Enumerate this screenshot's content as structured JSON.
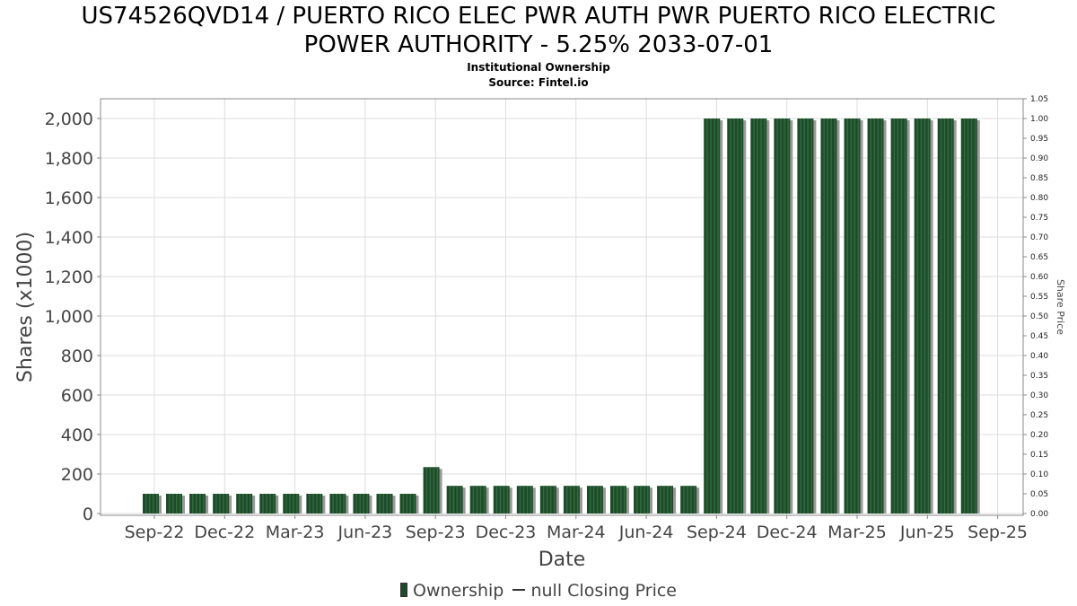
{
  "header": {
    "title_line1": "US74526QVD14 / PUERTO RICO ELEC PWR AUTH PWR PUERTO RICO ELECTRIC",
    "title_line2": "POWER AUTHORITY - 5.25% 2033-07-01",
    "subtitle_line1": "Institutional Ownership",
    "subtitle_line2": "Source: Fintel.io"
  },
  "legend": {
    "ownership_label": "Ownership",
    "price_label": "null Closing Price"
  },
  "colors": {
    "bar_fill": "#1e4a2a",
    "bar_stripe": "#2f6b3c",
    "bar_shadow": "#9a9a9a",
    "grid": "#dddddd",
    "axis": "#888888",
    "text": "#444444"
  },
  "chart_data": {
    "type": "bar",
    "xlabel": "Date",
    "ylabel": "Shares (x1000)",
    "y2label": "Share Price",
    "ylim": [
      0,
      2100
    ],
    "y2lim": [
      0,
      1.05
    ],
    "grid": true,
    "legend_position": "bottom",
    "x_ticks": [
      "Sep-22",
      "Dec-22",
      "Mar-23",
      "Jun-23",
      "Sep-23",
      "Dec-23",
      "Mar-24",
      "Jun-24",
      "Sep-24",
      "Dec-24",
      "Mar-25",
      "Jun-25",
      "Sep-25"
    ],
    "y_ticks": [
      "0",
      "200",
      "400",
      "600",
      "800",
      "1,000",
      "1,200",
      "1,400",
      "1,600",
      "1,800",
      "2,000"
    ],
    "y2_ticks": [
      "0.00",
      "0.05",
      "0.10",
      "0.15",
      "0.20",
      "0.25",
      "0.30",
      "0.35",
      "0.40",
      "0.45",
      "0.50",
      "0.55",
      "0.60",
      "0.65",
      "0.70",
      "0.75",
      "0.80",
      "0.85",
      "0.90",
      "0.95",
      "1.00",
      "1.05"
    ],
    "series": [
      {
        "name": "Ownership",
        "values": [
          100,
          100,
          100,
          100,
          100,
          100,
          100,
          100,
          100,
          100,
          100,
          100,
          235,
          140,
          140,
          140,
          140,
          140,
          140,
          140,
          140,
          140,
          140,
          140,
          2000,
          2000,
          2000,
          2000,
          2000,
          2000,
          2000,
          2000,
          2000,
          2000,
          2000,
          2000
        ]
      }
    ]
  }
}
